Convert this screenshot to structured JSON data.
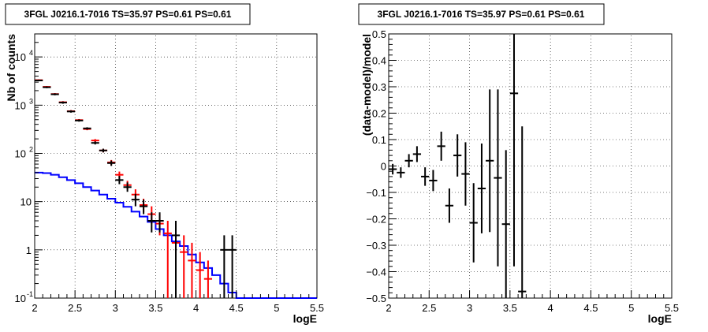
{
  "chart_data": [
    {
      "type": "line",
      "title": "3FGL J0216.1-7016 TS=35.97 PS=0.61 PS=0.61",
      "xlabel": "logE",
      "ylabel": "Nb of counts",
      "xlim": [
        2,
        5.5
      ],
      "ylim": [
        0.1,
        30000
      ],
      "yscale": "log",
      "grid": true,
      "x_ticks": [
        "2",
        "2.5",
        "3",
        "3.5",
        "4",
        "4.5",
        "5",
        "5.5"
      ],
      "y_ticks": [
        {
          "v": 0.1,
          "label": "10",
          "exp": "-1"
        },
        {
          "v": 1,
          "label": "1",
          "exp": ""
        },
        {
          "v": 10,
          "label": "10",
          "exp": ""
        },
        {
          "v": 100,
          "label": "10",
          "exp": "2"
        },
        {
          "v": 1000,
          "label": "10",
          "exp": "3"
        },
        {
          "v": 10000,
          "label": "10",
          "exp": "4"
        }
      ],
      "series": [
        {
          "kind": "step",
          "color": "#0000ff",
          "bin_edges": [
            2.0,
            2.1,
            2.2,
            2.3,
            2.4,
            2.5,
            2.6,
            2.7,
            2.8,
            2.9,
            3.0,
            3.1,
            3.2,
            3.3,
            3.4,
            3.5,
            3.6,
            3.7,
            3.8,
            3.9,
            4.0,
            4.1,
            4.2,
            4.3,
            4.4,
            4.5,
            4.6,
            4.7,
            4.8,
            4.9,
            5.0,
            5.1,
            5.2,
            5.3,
            5.4,
            5.5
          ],
          "values": [
            40,
            39,
            36,
            32,
            28,
            24,
            20,
            17,
            14,
            11.5,
            9.5,
            7.8,
            6.2,
            4.9,
            3.8,
            2.7,
            2.0,
            1.5,
            1.2,
            0.8,
            0.55,
            0.42,
            0.3,
            0.2,
            0.13,
            0.1,
            0.1,
            0.1,
            0.1,
            0.1,
            0.1,
            0.1,
            0.1,
            0.1,
            0.1
          ]
        },
        {
          "kind": "errorbar",
          "color": "#ff0000",
          "points": [
            {
              "x": 2.05,
              "y": 3300,
              "lo": 3180,
              "hi": 3420
            },
            {
              "x": 2.15,
              "y": 2400,
              "lo": 2300,
              "hi": 2500
            },
            {
              "x": 2.25,
              "y": 1700,
              "lo": 1620,
              "hi": 1780
            },
            {
              "x": 2.35,
              "y": 1150,
              "lo": 1090,
              "hi": 1210
            },
            {
              "x": 2.45,
              "y": 750,
              "lo": 710,
              "hi": 790
            },
            {
              "x": 2.55,
              "y": 490,
              "lo": 465,
              "hi": 515
            },
            {
              "x": 2.65,
              "y": 320,
              "lo": 302,
              "hi": 338
            },
            {
              "x": 2.75,
              "y": 185,
              "lo": 172,
              "hi": 198
            },
            {
              "x": 2.85,
              "y": 115,
              "lo": 105,
              "hi": 125
            },
            {
              "x": 2.95,
              "y": 65,
              "lo": 57,
              "hi": 73
            },
            {
              "x": 3.05,
              "y": 36,
              "lo": 30,
              "hi": 42
            },
            {
              "x": 3.15,
              "y": 22,
              "lo": 18,
              "hi": 27
            },
            {
              "x": 3.25,
              "y": 14,
              "lo": 10.5,
              "hi": 18
            },
            {
              "x": 3.35,
              "y": 8.5,
              "lo": 6,
              "hi": 11.5
            },
            {
              "x": 3.45,
              "y": 5.5,
              "lo": 3.5,
              "hi": 8
            },
            {
              "x": 3.55,
              "y": 3.5,
              "lo": 2,
              "hi": 5.5
            },
            {
              "x": 3.65,
              "y": 2.2,
              "lo": 0.1,
              "hi": 4
            },
            {
              "x": 3.75,
              "y": 1.4,
              "lo": 0.1,
              "hi": 3
            },
            {
              "x": 3.85,
              "y": 0.9,
              "lo": 0.1,
              "hi": 2
            },
            {
              "x": 3.95,
              "y": 0.6,
              "lo": 0.1,
              "hi": 1.4
            },
            {
              "x": 4.05,
              "y": 0.38,
              "lo": 0.1,
              "hi": 0.9
            },
            {
              "x": 4.15,
              "y": 0.25,
              "lo": 0.1,
              "hi": 0.6
            }
          ]
        },
        {
          "kind": "errorbar",
          "color": "#000000",
          "points": [
            {
              "x": 2.05,
              "y": 3250,
              "lo": 3130,
              "hi": 3370
            },
            {
              "x": 2.15,
              "y": 2350,
              "lo": 2250,
              "hi": 2450
            },
            {
              "x": 2.25,
              "y": 1680,
              "lo": 1600,
              "hi": 1760
            },
            {
              "x": 2.35,
              "y": 1130,
              "lo": 1070,
              "hi": 1190
            },
            {
              "x": 2.45,
              "y": 740,
              "lo": 700,
              "hi": 780
            },
            {
              "x": 2.55,
              "y": 480,
              "lo": 455,
              "hi": 505
            },
            {
              "x": 2.65,
              "y": 330,
              "lo": 312,
              "hi": 348
            },
            {
              "x": 2.75,
              "y": 165,
              "lo": 153,
              "hi": 177
            },
            {
              "x": 2.85,
              "y": 115,
              "lo": 105,
              "hi": 125
            },
            {
              "x": 2.95,
              "y": 63,
              "lo": 55,
              "hi": 71
            },
            {
              "x": 3.05,
              "y": 28,
              "lo": 23,
              "hi": 34
            },
            {
              "x": 3.15,
              "y": 20,
              "lo": 16,
              "hi": 25
            },
            {
              "x": 3.25,
              "y": 11,
              "lo": 8,
              "hi": 14.5
            },
            {
              "x": 3.35,
              "y": 8,
              "lo": 5.5,
              "hi": 11
            },
            {
              "x": 3.45,
              "y": 4,
              "lo": 2.3,
              "hi": 6
            },
            {
              "x": 3.55,
              "y": 4,
              "lo": 2.3,
              "hi": 6
            },
            {
              "x": 3.75,
              "y": 2,
              "lo": 0.1,
              "hi": 4
            },
            {
              "x": 4.35,
              "y": 1,
              "lo": 0.1,
              "hi": 2
            },
            {
              "x": 4.45,
              "y": 1,
              "lo": 0.1,
              "hi": 2
            }
          ]
        }
      ]
    },
    {
      "type": "scatter",
      "title": "3FGL J0216.1-7016 TS=35.97 PS=0.61 PS=0.61",
      "xlabel": "logE",
      "ylabel": "(data-model)/model",
      "xlim": [
        2,
        5.5
      ],
      "ylim": [
        -0.5,
        0.5
      ],
      "grid": true,
      "x_ticks": [
        "2",
        "2.5",
        "3",
        "3.5",
        "4",
        "4.5",
        "5",
        "5.5"
      ],
      "y_ticks": [
        "−0.5",
        "−0.4",
        "−0.3",
        "−0.2",
        "−0.1",
        "0",
        "0.1",
        "0.2",
        "0.3",
        "0.4",
        "0.5"
      ],
      "series": [
        {
          "kind": "errorbar",
          "color": "#000000",
          "points": [
            {
              "x": 2.05,
              "y": -0.012,
              "lo": -0.032,
              "hi": 0.008
            },
            {
              "x": 2.15,
              "y": -0.025,
              "lo": -0.045,
              "hi": -0.005
            },
            {
              "x": 2.25,
              "y": 0.02,
              "lo": -0.005,
              "hi": 0.045
            },
            {
              "x": 2.35,
              "y": 0.045,
              "lo": 0.015,
              "hi": 0.075
            },
            {
              "x": 2.45,
              "y": -0.04,
              "lo": -0.075,
              "hi": -0.005
            },
            {
              "x": 2.55,
              "y": -0.055,
              "lo": -0.095,
              "hi": -0.015
            },
            {
              "x": 2.65,
              "y": 0.075,
              "lo": 0.02,
              "hi": 0.13
            },
            {
              "x": 2.75,
              "y": -0.15,
              "lo": -0.215,
              "hi": -0.085
            },
            {
              "x": 2.85,
              "y": 0.04,
              "lo": -0.04,
              "hi": 0.12
            },
            {
              "x": 2.95,
              "y": -0.03,
              "lo": -0.15,
              "hi": 0.09
            },
            {
              "x": 3.05,
              "y": -0.215,
              "lo": -0.365,
              "hi": -0.065
            },
            {
              "x": 3.15,
              "y": -0.085,
              "lo": -0.255,
              "hi": 0.085
            },
            {
              "x": 3.25,
              "y": 0.02,
              "lo": -0.25,
              "hi": 0.29
            },
            {
              "x": 3.35,
              "y": -0.045,
              "lo": -0.38,
              "hi": 0.29
            },
            {
              "x": 3.45,
              "y": -0.22,
              "lo": -0.5,
              "hi": 0.06
            },
            {
              "x": 3.55,
              "y": 0.275,
              "lo": -0.38,
              "hi": 0.5
            },
            {
              "x": 3.65,
              "y": -0.475,
              "lo": -0.5,
              "hi": 0.15
            }
          ]
        }
      ]
    }
  ]
}
